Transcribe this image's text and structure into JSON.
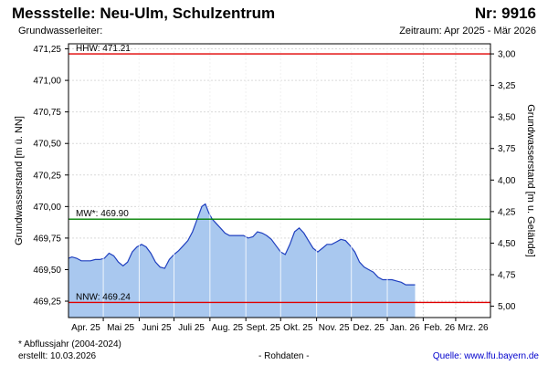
{
  "header": {
    "station": "Messstelle: Neu-Ulm, Schulzentrum",
    "number": "Nr: 9916",
    "aquifer": "Grundwasserleiter:",
    "period": "Zeitraum: Apr 2025 - Mär 2026"
  },
  "footer": {
    "note": "* Abflussjahr (2004-2024)",
    "created_label": "erstellt:",
    "created_date": "10.03.2026",
    "raw_data": "- Rohdaten -",
    "source_label": "Quelle:",
    "source_url": "www.lfu.bayern.de"
  },
  "colors": {
    "area_fill": "#a9c8ef",
    "line": "#1f3fbf",
    "hhw": "#e00000",
    "nnw": "#e00000",
    "mw": "#008000",
    "grid": "#d9d9d9",
    "frame": "#000000"
  },
  "chart_data": {
    "type": "area",
    "ylabel": "Grundwasserstand [m ü. NN]",
    "ylabel_right": "Grundwasserstand [m u. Gelände]",
    "ylim": [
      469.12,
      471.29
    ],
    "yticks": [
      "469,25",
      "469,50",
      "469,75",
      "470,00",
      "470,25",
      "470,50",
      "470,75",
      "471,00",
      "471,25"
    ],
    "ytick_values": [
      469.25,
      469.5,
      469.75,
      470.0,
      470.25,
      470.5,
      470.75,
      471.0,
      471.25
    ],
    "ytick_right": [
      "3,00",
      "3,25",
      "3,50",
      "3,75",
      "4,00",
      "4,25",
      "4,50",
      "4,75",
      "5,00"
    ],
    "ytick_right_values": [
      471.21,
      470.96,
      470.71,
      470.46,
      470.21,
      469.96,
      469.71,
      469.46,
      469.21
    ],
    "xlim": [
      "2025-04-01",
      "2026-03-31"
    ],
    "x_tick_dates": [
      "2025-05-01",
      "2025-06-01",
      "2025-07-01",
      "2025-08-01",
      "2025-09-01",
      "2025-10-01",
      "2025-11-01",
      "2025-12-01",
      "2026-01-01",
      "2026-02-01",
      "2026-03-01"
    ],
    "month_labels": [
      "Apr. 25",
      "Mai 25",
      "Juni 25",
      "Juli 25",
      "Aug. 25",
      "Sept. 25",
      "Okt. 25",
      "Nov. 25",
      "Dez. 25",
      "Jan. 26",
      "Feb. 26",
      "Mrz. 26"
    ],
    "month_label_dates": [
      "2025-04-16",
      "2025-05-16",
      "2025-06-16",
      "2025-07-16",
      "2025-08-16",
      "2025-09-16",
      "2025-10-16",
      "2025-11-16",
      "2025-12-16",
      "2026-01-16",
      "2026-02-15",
      "2026-03-16"
    ],
    "reference_lines": [
      {
        "label": "HHW: 471.21",
        "value": 471.21,
        "color": "#e00000"
      },
      {
        "label": "MW*: 469.90",
        "value": 469.9,
        "color": "#008000"
      },
      {
        "label": "NNW: 469.24",
        "value": 469.24,
        "color": "#e00000"
      }
    ],
    "series": [
      {
        "x": [
          "2025-04-01",
          "2025-04-04",
          "2025-04-08",
          "2025-04-12",
          "2025-04-16",
          "2025-04-20",
          "2025-04-24",
          "2025-04-28",
          "2025-05-02",
          "2025-05-06",
          "2025-05-10",
          "2025-05-14",
          "2025-05-18",
          "2025-05-22",
          "2025-05-26",
          "2025-05-30",
          "2025-06-03",
          "2025-06-07",
          "2025-06-11",
          "2025-06-15",
          "2025-06-19",
          "2025-06-23",
          "2025-06-27",
          "2025-07-01",
          "2025-07-05",
          "2025-07-09",
          "2025-07-13",
          "2025-07-17",
          "2025-07-21",
          "2025-07-25",
          "2025-07-28",
          "2025-07-31",
          "2025-08-03",
          "2025-08-06",
          "2025-08-10",
          "2025-08-14",
          "2025-08-18",
          "2025-08-22",
          "2025-08-26",
          "2025-08-30",
          "2025-09-03",
          "2025-09-07",
          "2025-09-11",
          "2025-09-15",
          "2025-09-19",
          "2025-09-23",
          "2025-09-27",
          "2025-10-01",
          "2025-10-05",
          "2025-10-09",
          "2025-10-13",
          "2025-10-17",
          "2025-10-21",
          "2025-10-25",
          "2025-10-29",
          "2025-11-02",
          "2025-11-06",
          "2025-11-10",
          "2025-11-14",
          "2025-11-18",
          "2025-11-22",
          "2025-11-26",
          "2025-11-30",
          "2025-12-04",
          "2025-12-08",
          "2025-12-12",
          "2025-12-16",
          "2025-12-20",
          "2025-12-24",
          "2025-12-28",
          "2026-01-01",
          "2026-01-05",
          "2026-01-09",
          "2026-01-13",
          "2026-01-17",
          "2026-01-21",
          "2026-01-25"
        ],
        "y": [
          469.59,
          469.6,
          469.59,
          469.57,
          469.57,
          469.57,
          469.58,
          469.58,
          469.59,
          469.63,
          469.61,
          469.56,
          469.53,
          469.56,
          469.64,
          469.68,
          469.7,
          469.68,
          469.63,
          469.56,
          469.52,
          469.51,
          469.58,
          469.62,
          469.65,
          469.69,
          469.73,
          469.8,
          469.9,
          470.0,
          470.02,
          469.95,
          469.9,
          469.87,
          469.83,
          469.79,
          469.77,
          469.77,
          469.77,
          469.77,
          469.75,
          469.76,
          469.8,
          469.79,
          469.77,
          469.74,
          469.69,
          469.64,
          469.62,
          469.7,
          469.8,
          469.83,
          469.79,
          469.73,
          469.67,
          469.64,
          469.67,
          469.7,
          469.7,
          469.72,
          469.74,
          469.73,
          469.69,
          469.64,
          469.56,
          469.52,
          469.5,
          469.48,
          469.44,
          469.42,
          469.42,
          469.42,
          469.41,
          469.4,
          469.38,
          469.38,
          469.38
        ]
      }
    ]
  }
}
